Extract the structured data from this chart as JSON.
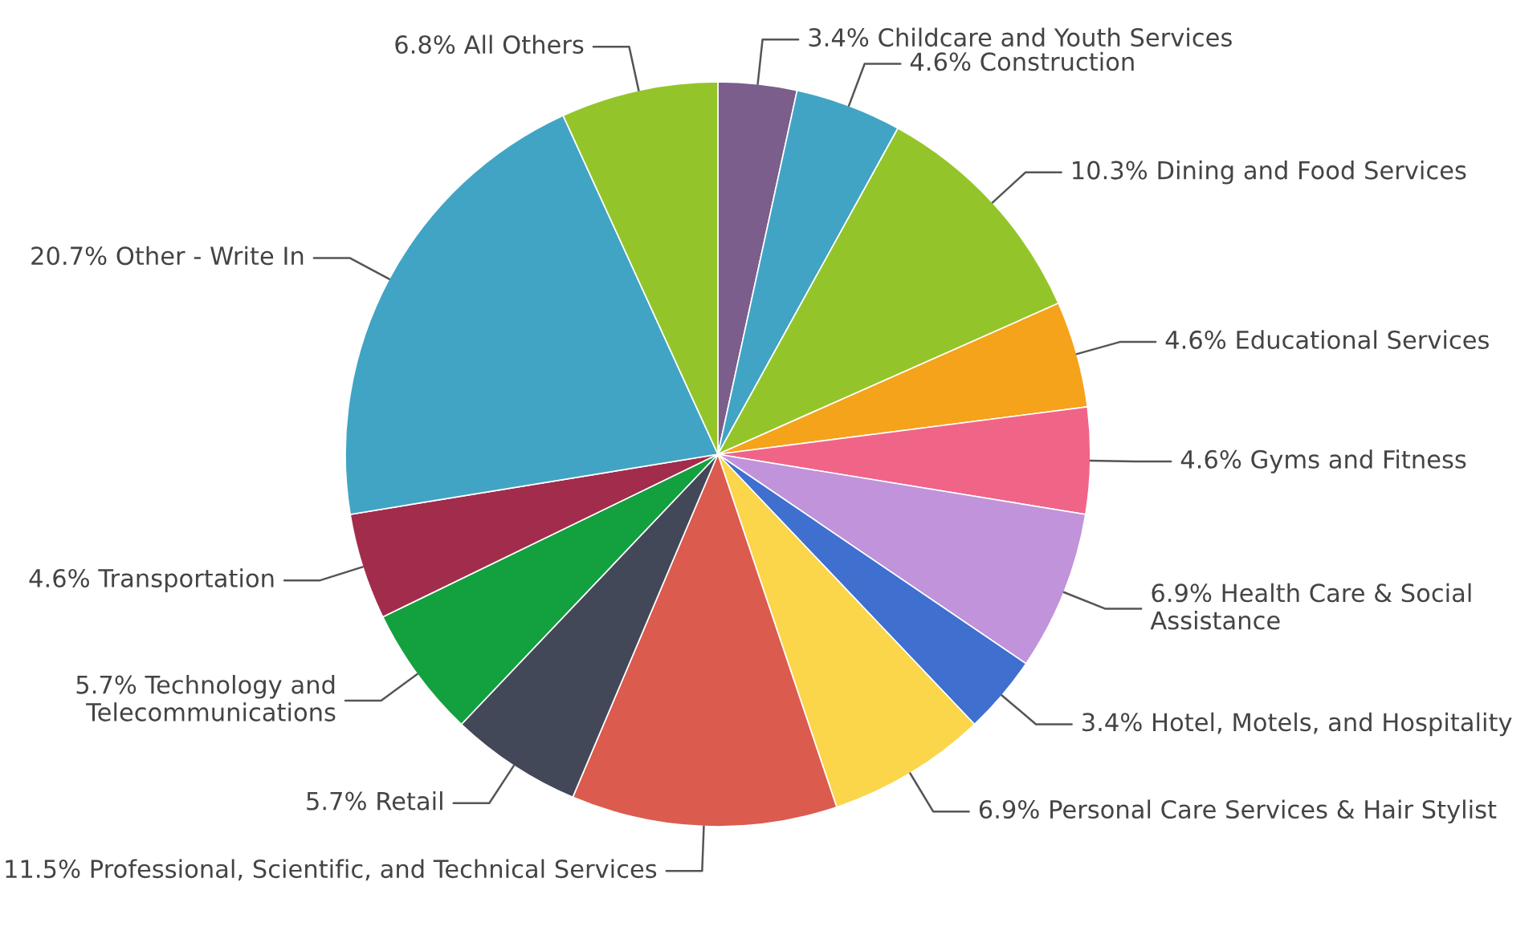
{
  "chart_data": {
    "type": "pie",
    "categories": [
      "Childcare and Youth Services",
      "Construction",
      "Dining and Food Services",
      "Educational Services",
      "Gyms and Fitness",
      "Health Care & Social Assistance",
      "Hotel, Motels, and Hospitality",
      "Personal Care Services & Hair Stylist",
      "Professional, Scientific, and Technical Services",
      "Retail",
      "Technology and Telecommunications",
      "Transportation",
      "Other - Write In",
      "All Others"
    ],
    "values": [
      3.4,
      4.6,
      10.3,
      4.6,
      4.6,
      6.9,
      3.4,
      6.9,
      11.5,
      5.7,
      5.7,
      4.6,
      20.7,
      6.8
    ],
    "value_labels": [
      "3.4%",
      "4.6%",
      "10.3%",
      "4.6%",
      "4.6%",
      "6.9%",
      "3.4%",
      "6.9%",
      "11.5%",
      "5.7%",
      "5.7%",
      "4.6%",
      "20.7%",
      "6.8%"
    ],
    "colors": [
      "#7b5e8c",
      "#41a4c4",
      "#93c52a",
      "#f5a31b",
      "#f06488",
      "#c193db",
      "#3f6fcf",
      "#fbd54a",
      "#db5b4e",
      "#434859",
      "#13a03f",
      "#a22c4b",
      "#41a4c4",
      "#93c52a"
    ]
  }
}
